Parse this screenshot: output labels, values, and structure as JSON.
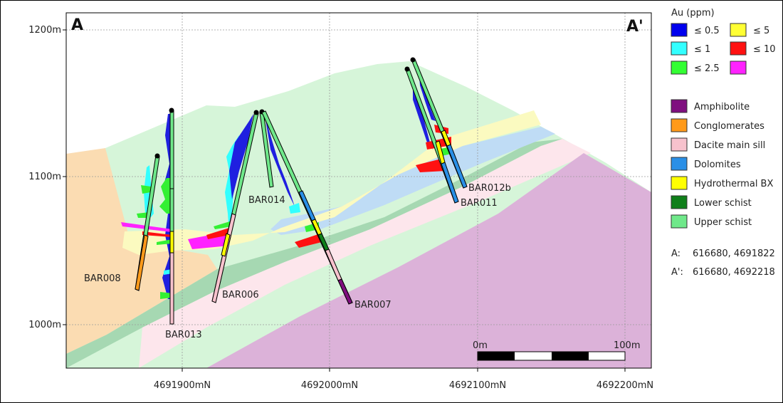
{
  "section": {
    "start_label": "A",
    "end_label": "A'"
  },
  "y_axis": {
    "ticks": [
      {
        "value": 1200,
        "label": "1200m"
      },
      {
        "value": 1100,
        "label": "1100m"
      },
      {
        "value": 1000,
        "label": "1000m"
      }
    ]
  },
  "x_axis": {
    "ticks": [
      {
        "value": 4691900,
        "label": "4691900mN"
      },
      {
        "value": 4692000,
        "label": "4692000mN"
      },
      {
        "value": 4692100,
        "label": "4692100mN"
      },
      {
        "value": 4692200,
        "label": "4692200mN"
      }
    ]
  },
  "drillholes": [
    {
      "id": "BAR008",
      "label": "BAR008"
    },
    {
      "id": "BAR013",
      "label": "BAR013"
    },
    {
      "id": "BAR006",
      "label": "BAR006"
    },
    {
      "id": "BAR014",
      "label": "BAR014"
    },
    {
      "id": "BAR007",
      "label": "BAR007"
    },
    {
      "id": "BAR011",
      "label": "BAR011"
    },
    {
      "id": "BAR012b",
      "label": "BAR012b"
    }
  ],
  "scale_bar": {
    "start_label": "0m",
    "end_label": "100m"
  },
  "legend_au": {
    "title": "Au (ppm)",
    "items": [
      {
        "label": "≤ 0.5",
        "color": "#0000ee"
      },
      {
        "label": "≤ 5",
        "color": "#ffff33"
      },
      {
        "label": "≤ 1",
        "color": "#33ffff"
      },
      {
        "label": "≤ 10",
        "color": "#ff1111"
      },
      {
        "label": "≤ 2.5",
        "color": "#33ff33"
      },
      {
        "label": "",
        "color": "#ff22ff"
      }
    ]
  },
  "legend_lithology": {
    "items": [
      {
        "label": "Amphibolite",
        "color": "#7f0f7f"
      },
      {
        "label": "Conglomerates",
        "color": "#ff9a1a"
      },
      {
        "label": "Dacite main sill",
        "color": "#f7c2cd"
      },
      {
        "label": "Dolomites",
        "color": "#2a8fe6"
      },
      {
        "label": "Hydrothermal BX",
        "color": "#ffff00"
      },
      {
        "label": "Lower schist",
        "color": "#0f7f1a"
      },
      {
        "label": "Upper schist",
        "color": "#6fe88a"
      }
    ]
  },
  "coordinates": [
    {
      "label": "A:",
      "value": "616680, 4691822"
    },
    {
      "label": "A':",
      "value": "616680, 4692218"
    }
  ],
  "unit_colors": {
    "upper_schist_fill": "#d6f5d9",
    "conglomerate_fill": "#fbdcb2",
    "dacite_fill": "#fde6ec",
    "amphibolite_fill": "#dcb2d9",
    "dolomite_fill": "#bfdcf5",
    "hydrothermal_fill": "#fbfac0",
    "lower_schist_fill": "#a6d8b2"
  }
}
